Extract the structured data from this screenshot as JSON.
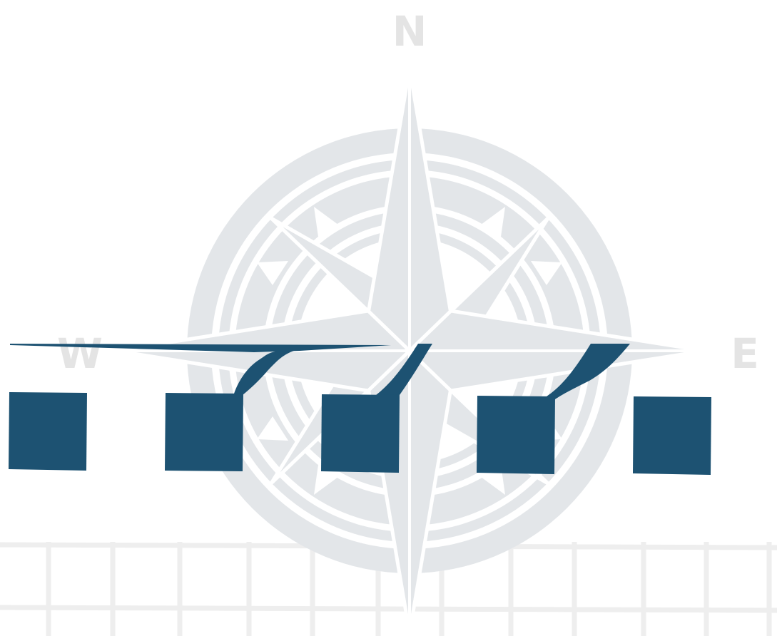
{
  "compass": {
    "north_label": "N",
    "west_label": "W",
    "east_label": "E"
  },
  "colors": {
    "background": "#ffffff",
    "compass_fill": "#e3e6e9",
    "compass_lines": "#ffffff",
    "letters": "#e4e4e4",
    "grid": "#eeeeee",
    "accent": "#1d5272"
  },
  "graphic": {
    "compass_icon": "compass-rose-icon",
    "square_icon": "square-block-icon",
    "connector_icon": "curved-stroke-icon"
  }
}
